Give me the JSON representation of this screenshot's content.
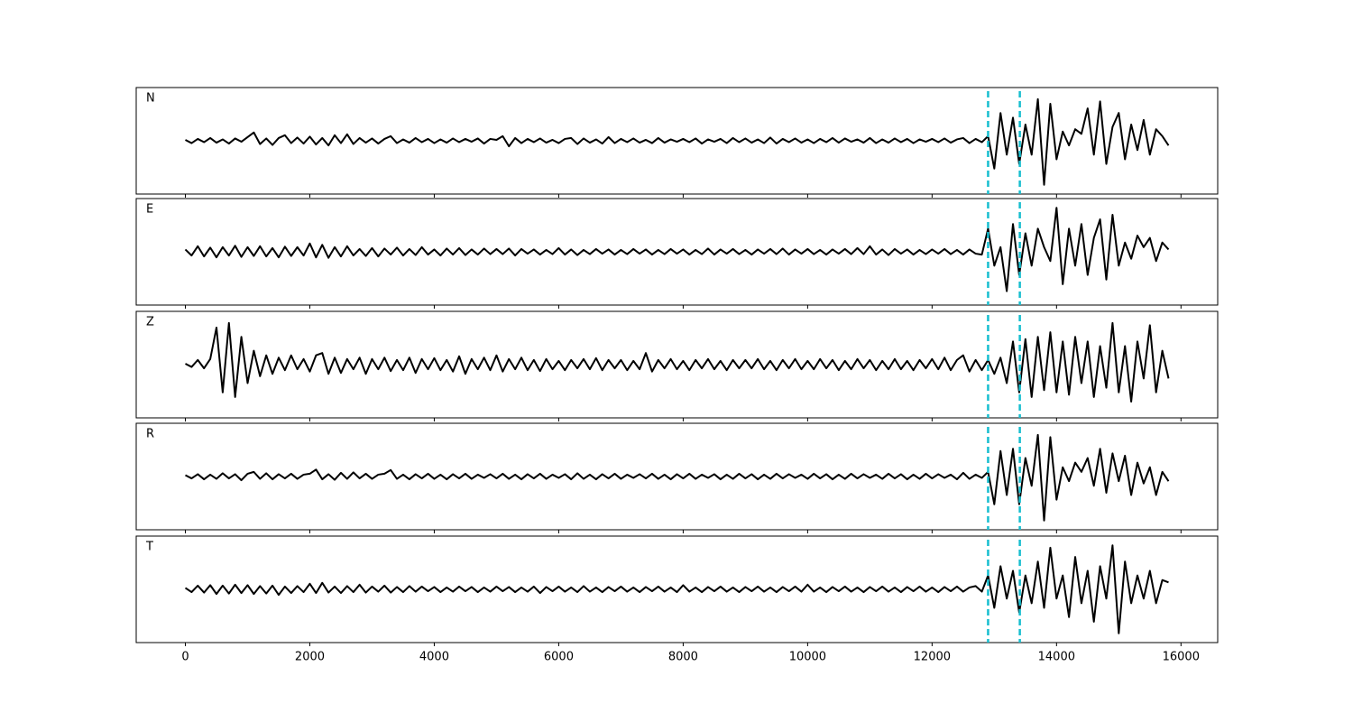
{
  "chart_data": {
    "type": "line",
    "x": [
      0,
      100,
      200,
      300,
      400,
      500,
      600,
      700,
      800,
      900,
      1000,
      1100,
      1200,
      1300,
      1400,
      1500,
      1600,
      1700,
      1800,
      1900,
      2000,
      2100,
      2200,
      2300,
      2400,
      2500,
      2600,
      2700,
      2800,
      2900,
      3000,
      3100,
      3200,
      3300,
      3400,
      3500,
      3600,
      3700,
      3800,
      3900,
      4000,
      4100,
      4200,
      4300,
      4400,
      4500,
      4600,
      4700,
      4800,
      4900,
      5000,
      5100,
      5200,
      5300,
      5400,
      5500,
      5600,
      5700,
      5800,
      5900,
      6000,
      6100,
      6200,
      6300,
      6400,
      6500,
      6600,
      6700,
      6800,
      6900,
      7000,
      7100,
      7200,
      7300,
      7400,
      7500,
      7600,
      7700,
      7800,
      7900,
      8000,
      8100,
      8200,
      8300,
      8400,
      8500,
      8600,
      8700,
      8800,
      8900,
      9000,
      9100,
      9200,
      9300,
      9400,
      9500,
      9600,
      9700,
      9800,
      9900,
      10000,
      10100,
      10200,
      10300,
      10400,
      10500,
      10600,
      10700,
      10800,
      10900,
      11000,
      11100,
      11200,
      11300,
      11400,
      11500,
      11600,
      11700,
      11800,
      11900,
      12000,
      12100,
      12200,
      12300,
      12400,
      12500,
      12600,
      12700,
      12800,
      12900,
      13000,
      13100,
      13200,
      13300,
      13400,
      13500,
      13600,
      13700,
      13800,
      13900,
      14000,
      14100,
      14200,
      14300,
      14400,
      14500,
      14600,
      14700,
      14800,
      14900,
      15000,
      15100,
      15200,
      15300,
      15400,
      15500,
      15600,
      15700,
      15800
    ],
    "xlim": [
      -790,
      16590
    ],
    "xticks": [
      0,
      2000,
      4000,
      6000,
      8000,
      10000,
      12000,
      14000,
      16000
    ],
    "ylim": [
      -1.15,
      1.15
    ],
    "markers": [
      12900,
      13410
    ],
    "marker_color": "#17becf",
    "series": [
      {
        "name": "N",
        "color": "#000000",
        "values": [
          0.02,
          -0.05,
          0.04,
          -0.03,
          0.06,
          -0.04,
          0.03,
          -0.06,
          0.05,
          -0.02,
          0.08,
          0.18,
          -0.07,
          0.05,
          -0.09,
          0.06,
          0.12,
          -0.05,
          0.07,
          -0.06,
          0.09,
          -0.08,
          0.06,
          -0.1,
          0.12,
          -0.05,
          0.14,
          -0.07,
          0.06,
          -0.04,
          0.05,
          -0.06,
          0.04,
          0.1,
          -0.05,
          0.03,
          -0.04,
          0.06,
          -0.03,
          0.04,
          -0.05,
          0.03,
          -0.04,
          0.05,
          -0.03,
          0.04,
          -0.02,
          0.05,
          -0.06,
          0.04,
          0.02,
          0.1,
          -0.12,
          0.06,
          -0.05,
          0.04,
          -0.03,
          0.05,
          -0.04,
          0.02,
          -0.05,
          0.04,
          0.06,
          -0.07,
          0.05,
          -0.04,
          0.03,
          -0.06,
          0.08,
          -0.05,
          0.04,
          -0.03,
          0.05,
          -0.04,
          0.02,
          -0.05,
          0.06,
          -0.04,
          0.03,
          -0.02,
          0.04,
          -0.03,
          0.05,
          -0.06,
          0.03,
          -0.02,
          0.04,
          -0.05,
          0.06,
          -0.03,
          0.05,
          -0.04,
          0.03,
          -0.05,
          0.07,
          -0.06,
          0.04,
          -0.03,
          0.05,
          -0.04,
          0.03,
          -0.05,
          0.04,
          -0.03,
          0.06,
          -0.04,
          0.05,
          -0.02,
          0.03,
          -0.04,
          0.06,
          -0.05,
          0.03,
          -0.04,
          0.05,
          -0.03,
          0.04,
          -0.05,
          0.03,
          -0.02,
          0.04,
          -0.03,
          0.05,
          -0.04,
          0.03,
          0.06,
          -0.05,
          0.04,
          -0.03,
          0.1,
          -0.6,
          0.6,
          -0.3,
          0.5,
          -0.5,
          0.35,
          -0.3,
          0.9,
          -0.95,
          0.8,
          -0.4,
          0.2,
          -0.1,
          0.25,
          0.15,
          0.7,
          -0.3,
          0.85,
          -0.5,
          0.3,
          0.6,
          -0.4,
          0.35,
          -0.2,
          0.45,
          -0.3,
          0.25,
          0.1,
          -0.1
        ]
      },
      {
        "name": "E",
        "color": "#000000",
        "values": [
          0.05,
          -0.08,
          0.12,
          -0.1,
          0.09,
          -0.12,
          0.1,
          -0.08,
          0.13,
          -0.11,
          0.1,
          -0.09,
          0.12,
          -0.1,
          0.08,
          -0.12,
          0.11,
          -0.09,
          0.1,
          -0.08,
          0.18,
          -0.12,
          0.15,
          -0.13,
          0.1,
          -0.1,
          0.12,
          -0.08,
          0.06,
          -0.09,
          0.08,
          -0.1,
          0.07,
          -0.06,
          0.09,
          -0.08,
          0.06,
          -0.07,
          0.1,
          -0.06,
          0.05,
          -0.08,
          0.07,
          -0.06,
          0.08,
          -0.07,
          0.05,
          -0.06,
          0.07,
          -0.05,
          0.06,
          -0.05,
          0.07,
          -0.08,
          0.06,
          -0.04,
          0.05,
          -0.06,
          0.04,
          -0.05,
          0.08,
          -0.06,
          0.05,
          -0.07,
          0.04,
          -0.05,
          0.06,
          -0.04,
          0.05,
          -0.06,
          0.04,
          -0.05,
          0.06,
          -0.04,
          0.05,
          -0.06,
          0.04,
          -0.05,
          0.06,
          -0.04,
          0.05,
          -0.06,
          0.04,
          -0.05,
          0.07,
          -0.06,
          0.05,
          -0.04,
          0.06,
          -0.05,
          0.04,
          -0.06,
          0.05,
          -0.04,
          0.06,
          -0.05,
          0.07,
          -0.06,
          0.05,
          -0.04,
          0.06,
          -0.05,
          0.04,
          -0.06,
          0.05,
          -0.04,
          0.06,
          -0.05,
          0.08,
          -0.05,
          0.12,
          -0.06,
          0.05,
          -0.07,
          0.06,
          -0.04,
          0.05,
          -0.06,
          0.04,
          -0.05,
          0.05,
          -0.04,
          0.06,
          -0.05,
          0.04,
          -0.06,
          0.05,
          -0.04,
          -0.06,
          0.5,
          -0.3,
          0.1,
          -0.85,
          0.6,
          -0.5,
          0.4,
          -0.3,
          0.5,
          0.1,
          -0.2,
          0.95,
          -0.7,
          0.5,
          -0.3,
          0.6,
          -0.5,
          0.3,
          0.7,
          -0.6,
          0.8,
          -0.3,
          0.2,
          -0.15,
          0.35,
          0.1,
          0.3,
          -0.2,
          0.2,
          0.05
        ]
      },
      {
        "name": "Z",
        "color": "#000000",
        "values": [
          0.02,
          -0.05,
          0.1,
          -0.08,
          0.12,
          0.8,
          -0.6,
          0.9,
          -0.7,
          0.6,
          -0.4,
          0.3,
          -0.25,
          0.2,
          -0.2,
          0.15,
          -0.12,
          0.2,
          -0.1,
          0.12,
          -0.15,
          0.2,
          0.25,
          -0.2,
          0.15,
          -0.18,
          0.12,
          -0.1,
          0.15,
          -0.2,
          0.12,
          -0.1,
          0.15,
          -0.14,
          0.1,
          -0.12,
          0.15,
          -0.18,
          0.12,
          -0.1,
          0.14,
          -0.12,
          0.1,
          -0.15,
          0.18,
          -0.2,
          0.12,
          -0.1,
          0.15,
          -0.12,
          0.2,
          -0.15,
          0.12,
          -0.1,
          0.15,
          -0.12,
          0.1,
          -0.14,
          0.12,
          -0.1,
          0.08,
          -0.12,
          0.1,
          -0.08,
          0.12,
          -0.1,
          0.14,
          -0.12,
          0.1,
          -0.08,
          0.1,
          -0.12,
          0.08,
          -0.1,
          0.25,
          -0.15,
          0.1,
          -0.08,
          0.12,
          -0.1,
          0.08,
          -0.12,
          0.1,
          -0.08,
          0.12,
          -0.1,
          0.08,
          -0.12,
          0.1,
          -0.08,
          0.1,
          -0.08,
          0.12,
          -0.1,
          0.08,
          -0.12,
          0.1,
          -0.08,
          0.12,
          -0.1,
          0.08,
          -0.1,
          0.12,
          -0.08,
          0.1,
          -0.12,
          0.08,
          -0.1,
          0.12,
          -0.08,
          0.1,
          -0.12,
          0.08,
          -0.1,
          0.12,
          -0.1,
          0.08,
          -0.12,
          0.1,
          -0.08,
          0.12,
          -0.1,
          0.15,
          -0.12,
          0.1,
          0.2,
          -0.15,
          0.1,
          -0.12,
          0.1,
          -0.2,
          0.15,
          -0.4,
          0.5,
          -0.6,
          0.55,
          -0.7,
          0.6,
          -0.55,
          0.7,
          -0.6,
          0.5,
          -0.65,
          0.6,
          -0.4,
          0.5,
          -0.7,
          0.4,
          -0.5,
          0.9,
          -0.6,
          0.4,
          -0.8,
          0.5,
          -0.3,
          0.85,
          -0.6,
          0.3,
          -0.3
        ]
      },
      {
        "name": "R",
        "color": "#000000",
        "values": [
          0.03,
          -0.04,
          0.05,
          -0.06,
          0.04,
          -0.05,
          0.07,
          -0.04,
          0.05,
          -0.08,
          0.06,
          0.1,
          -0.05,
          0.07,
          -0.06,
          0.05,
          -0.04,
          0.06,
          -0.05,
          0.04,
          0.06,
          0.15,
          -0.06,
          0.05,
          -0.07,
          0.08,
          -0.05,
          0.09,
          -0.04,
          0.06,
          -0.05,
          0.04,
          0.06,
          0.14,
          -0.05,
          0.04,
          -0.06,
          0.05,
          -0.04,
          0.06,
          -0.05,
          0.04,
          -0.06,
          0.05,
          -0.04,
          0.06,
          -0.05,
          0.04,
          -0.03,
          0.05,
          -0.04,
          0.06,
          -0.05,
          0.04,
          -0.06,
          0.05,
          -0.04,
          0.06,
          -0.05,
          0.04,
          -0.03,
          0.05,
          -0.06,
          0.07,
          -0.05,
          0.04,
          -0.06,
          0.05,
          -0.04,
          0.06,
          -0.05,
          0.04,
          -0.03,
          0.05,
          -0.04,
          0.06,
          -0.05,
          0.04,
          -0.06,
          0.05,
          -0.04,
          0.06,
          -0.05,
          0.04,
          -0.03,
          0.05,
          -0.06,
          0.04,
          -0.05,
          0.06,
          -0.04,
          0.05,
          -0.06,
          0.04,
          -0.05,
          0.06,
          -0.04,
          0.05,
          -0.03,
          0.04,
          -0.05,
          0.06,
          -0.04,
          0.05,
          -0.06,
          0.04,
          -0.05,
          0.06,
          -0.04,
          0.05,
          -0.03,
          0.04,
          -0.05,
          0.06,
          -0.04,
          0.05,
          -0.06,
          0.04,
          -0.05,
          0.06,
          -0.04,
          0.05,
          -0.03,
          0.04,
          -0.06,
          0.08,
          -0.05,
          0.04,
          -0.03,
          0.1,
          -0.6,
          0.55,
          -0.4,
          0.6,
          -0.6,
          0.4,
          -0.2,
          0.9,
          -0.95,
          0.85,
          -0.5,
          0.2,
          -0.1,
          0.3,
          0.1,
          0.4,
          -0.2,
          0.6,
          -0.35,
          0.5,
          -0.1,
          0.45,
          -0.4,
          0.3,
          -0.15,
          0.2,
          -0.4,
          0.1,
          -0.1
        ]
      },
      {
        "name": "T",
        "color": "#000000",
        "values": [
          0.03,
          -0.06,
          0.08,
          -0.07,
          0.09,
          -0.1,
          0.08,
          -0.09,
          0.1,
          -0.08,
          0.09,
          -0.1,
          0.07,
          -0.09,
          0.08,
          -0.12,
          0.06,
          -0.08,
          0.07,
          -0.06,
          0.12,
          -0.08,
          0.14,
          -0.07,
          0.06,
          -0.08,
          0.07,
          -0.06,
          0.1,
          -0.07,
          0.06,
          -0.05,
          0.08,
          -0.07,
          0.05,
          -0.06,
          0.07,
          -0.05,
          0.06,
          -0.04,
          0.05,
          -0.06,
          0.04,
          -0.05,
          0.06,
          -0.04,
          0.05,
          -0.06,
          0.04,
          -0.05,
          0.06,
          -0.04,
          0.05,
          -0.06,
          0.04,
          -0.05,
          0.06,
          -0.08,
          0.05,
          -0.04,
          0.06,
          -0.05,
          0.04,
          -0.06,
          0.07,
          -0.05,
          0.04,
          -0.06,
          0.05,
          -0.04,
          0.06,
          -0.05,
          0.04,
          -0.06,
          0.05,
          -0.04,
          0.06,
          -0.05,
          0.04,
          -0.06,
          0.09,
          -0.05,
          0.04,
          -0.06,
          0.05,
          -0.04,
          0.06,
          -0.05,
          0.04,
          -0.06,
          0.05,
          -0.04,
          0.06,
          -0.05,
          0.04,
          -0.06,
          0.05,
          -0.04,
          0.06,
          -0.05,
          0.1,
          -0.05,
          0.04,
          -0.06,
          0.05,
          -0.04,
          0.06,
          -0.05,
          0.04,
          -0.06,
          0.05,
          -0.04,
          0.06,
          -0.05,
          0.04,
          -0.06,
          0.05,
          -0.04,
          0.06,
          -0.05,
          0.04,
          -0.06,
          0.05,
          -0.04,
          0.06,
          -0.05,
          0.04,
          0.07,
          -0.05,
          0.3,
          -0.4,
          0.5,
          -0.2,
          0.4,
          -0.5,
          0.3,
          -0.3,
          0.6,
          -0.4,
          0.9,
          -0.2,
          0.3,
          -0.6,
          0.7,
          -0.3,
          0.4,
          -0.7,
          0.5,
          -0.2,
          0.95,
          -0.95,
          0.6,
          -0.3,
          0.3,
          -0.2,
          0.4,
          -0.3,
          0.2,
          0.15
        ]
      }
    ]
  }
}
